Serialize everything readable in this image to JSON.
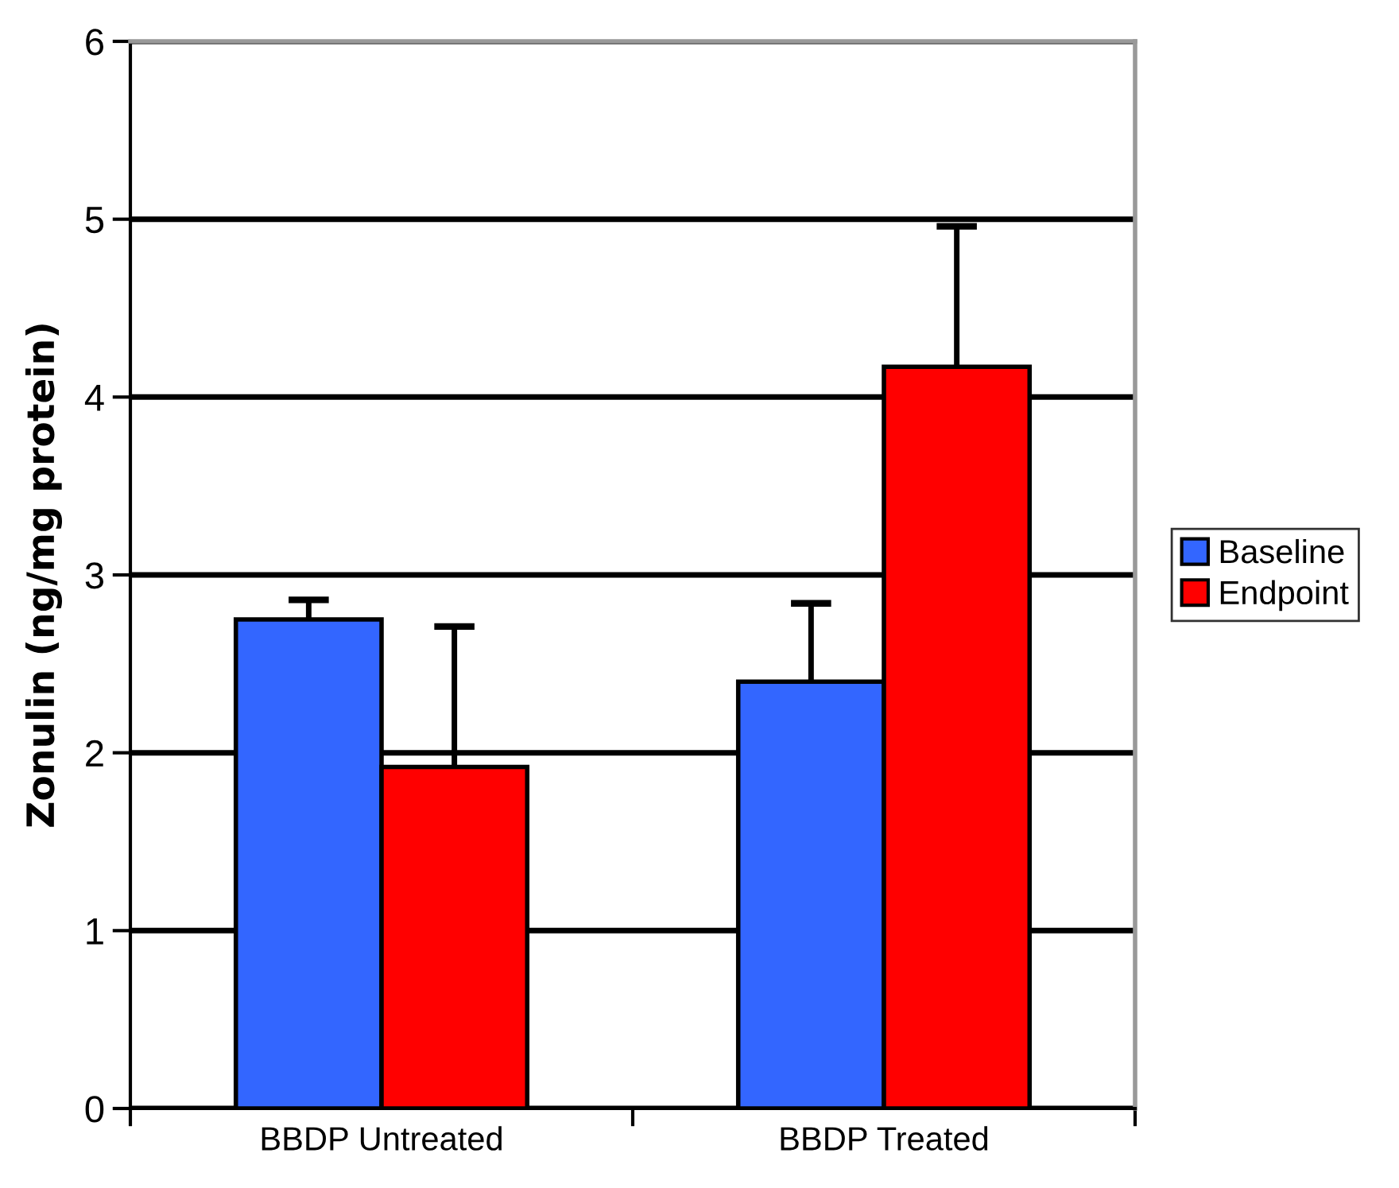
{
  "chart_data": {
    "type": "bar",
    "ylabel": "Zonulin (ng/mg protein)",
    "categories": [
      "BBDP Untreated",
      "BBDP Treated"
    ],
    "series": [
      {
        "name": "Baseline",
        "color": "#3366ff",
        "values": [
          2.75,
          2.4
        ],
        "errors": [
          [
            2.75,
            2.86
          ],
          [
            2.4,
            2.84
          ]
        ]
      },
      {
        "name": "Endpoint",
        "color": "#ff0000",
        "values": [
          1.92,
          4.17
        ],
        "errors": [
          [
            1.92,
            2.71
          ],
          [
            4.17,
            4.96
          ]
        ]
      }
    ],
    "ylim": [
      0,
      6
    ],
    "yticks": [
      0,
      1,
      2,
      3,
      4,
      5,
      6
    ],
    "grid": "y",
    "legend": "right"
  }
}
